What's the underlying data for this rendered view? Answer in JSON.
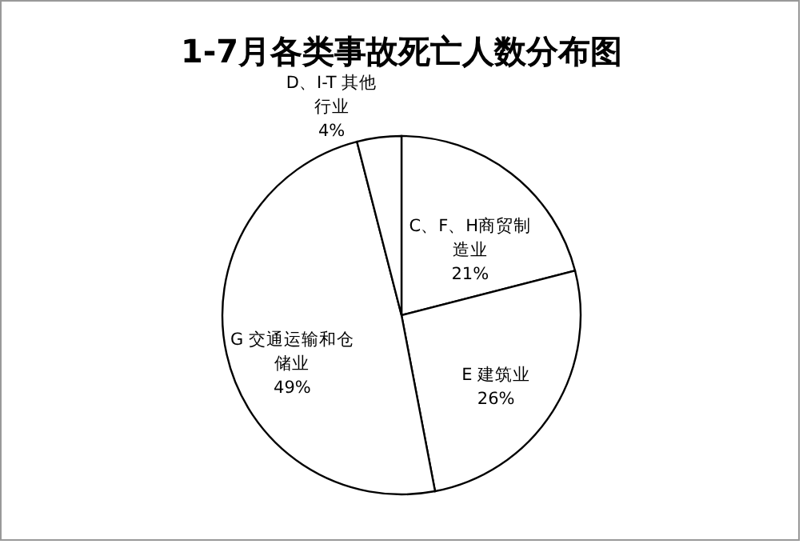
{
  "chart_data": {
    "type": "pie",
    "title": "1-7月各类事故死亡人数分布图",
    "categories": [
      "C、F、H商贸制造业",
      "E 建筑业",
      "G 交通运输和仓储业",
      "D、I-T 其他行业"
    ],
    "values": [
      21,
      26,
      49,
      4
    ],
    "colors": [
      "#ffffff",
      "#ffffff",
      "#ffffff",
      "#ffffff"
    ],
    "value_labels": [
      "21%",
      "26%",
      "49%",
      "4%"
    ],
    "legend": false
  }
}
